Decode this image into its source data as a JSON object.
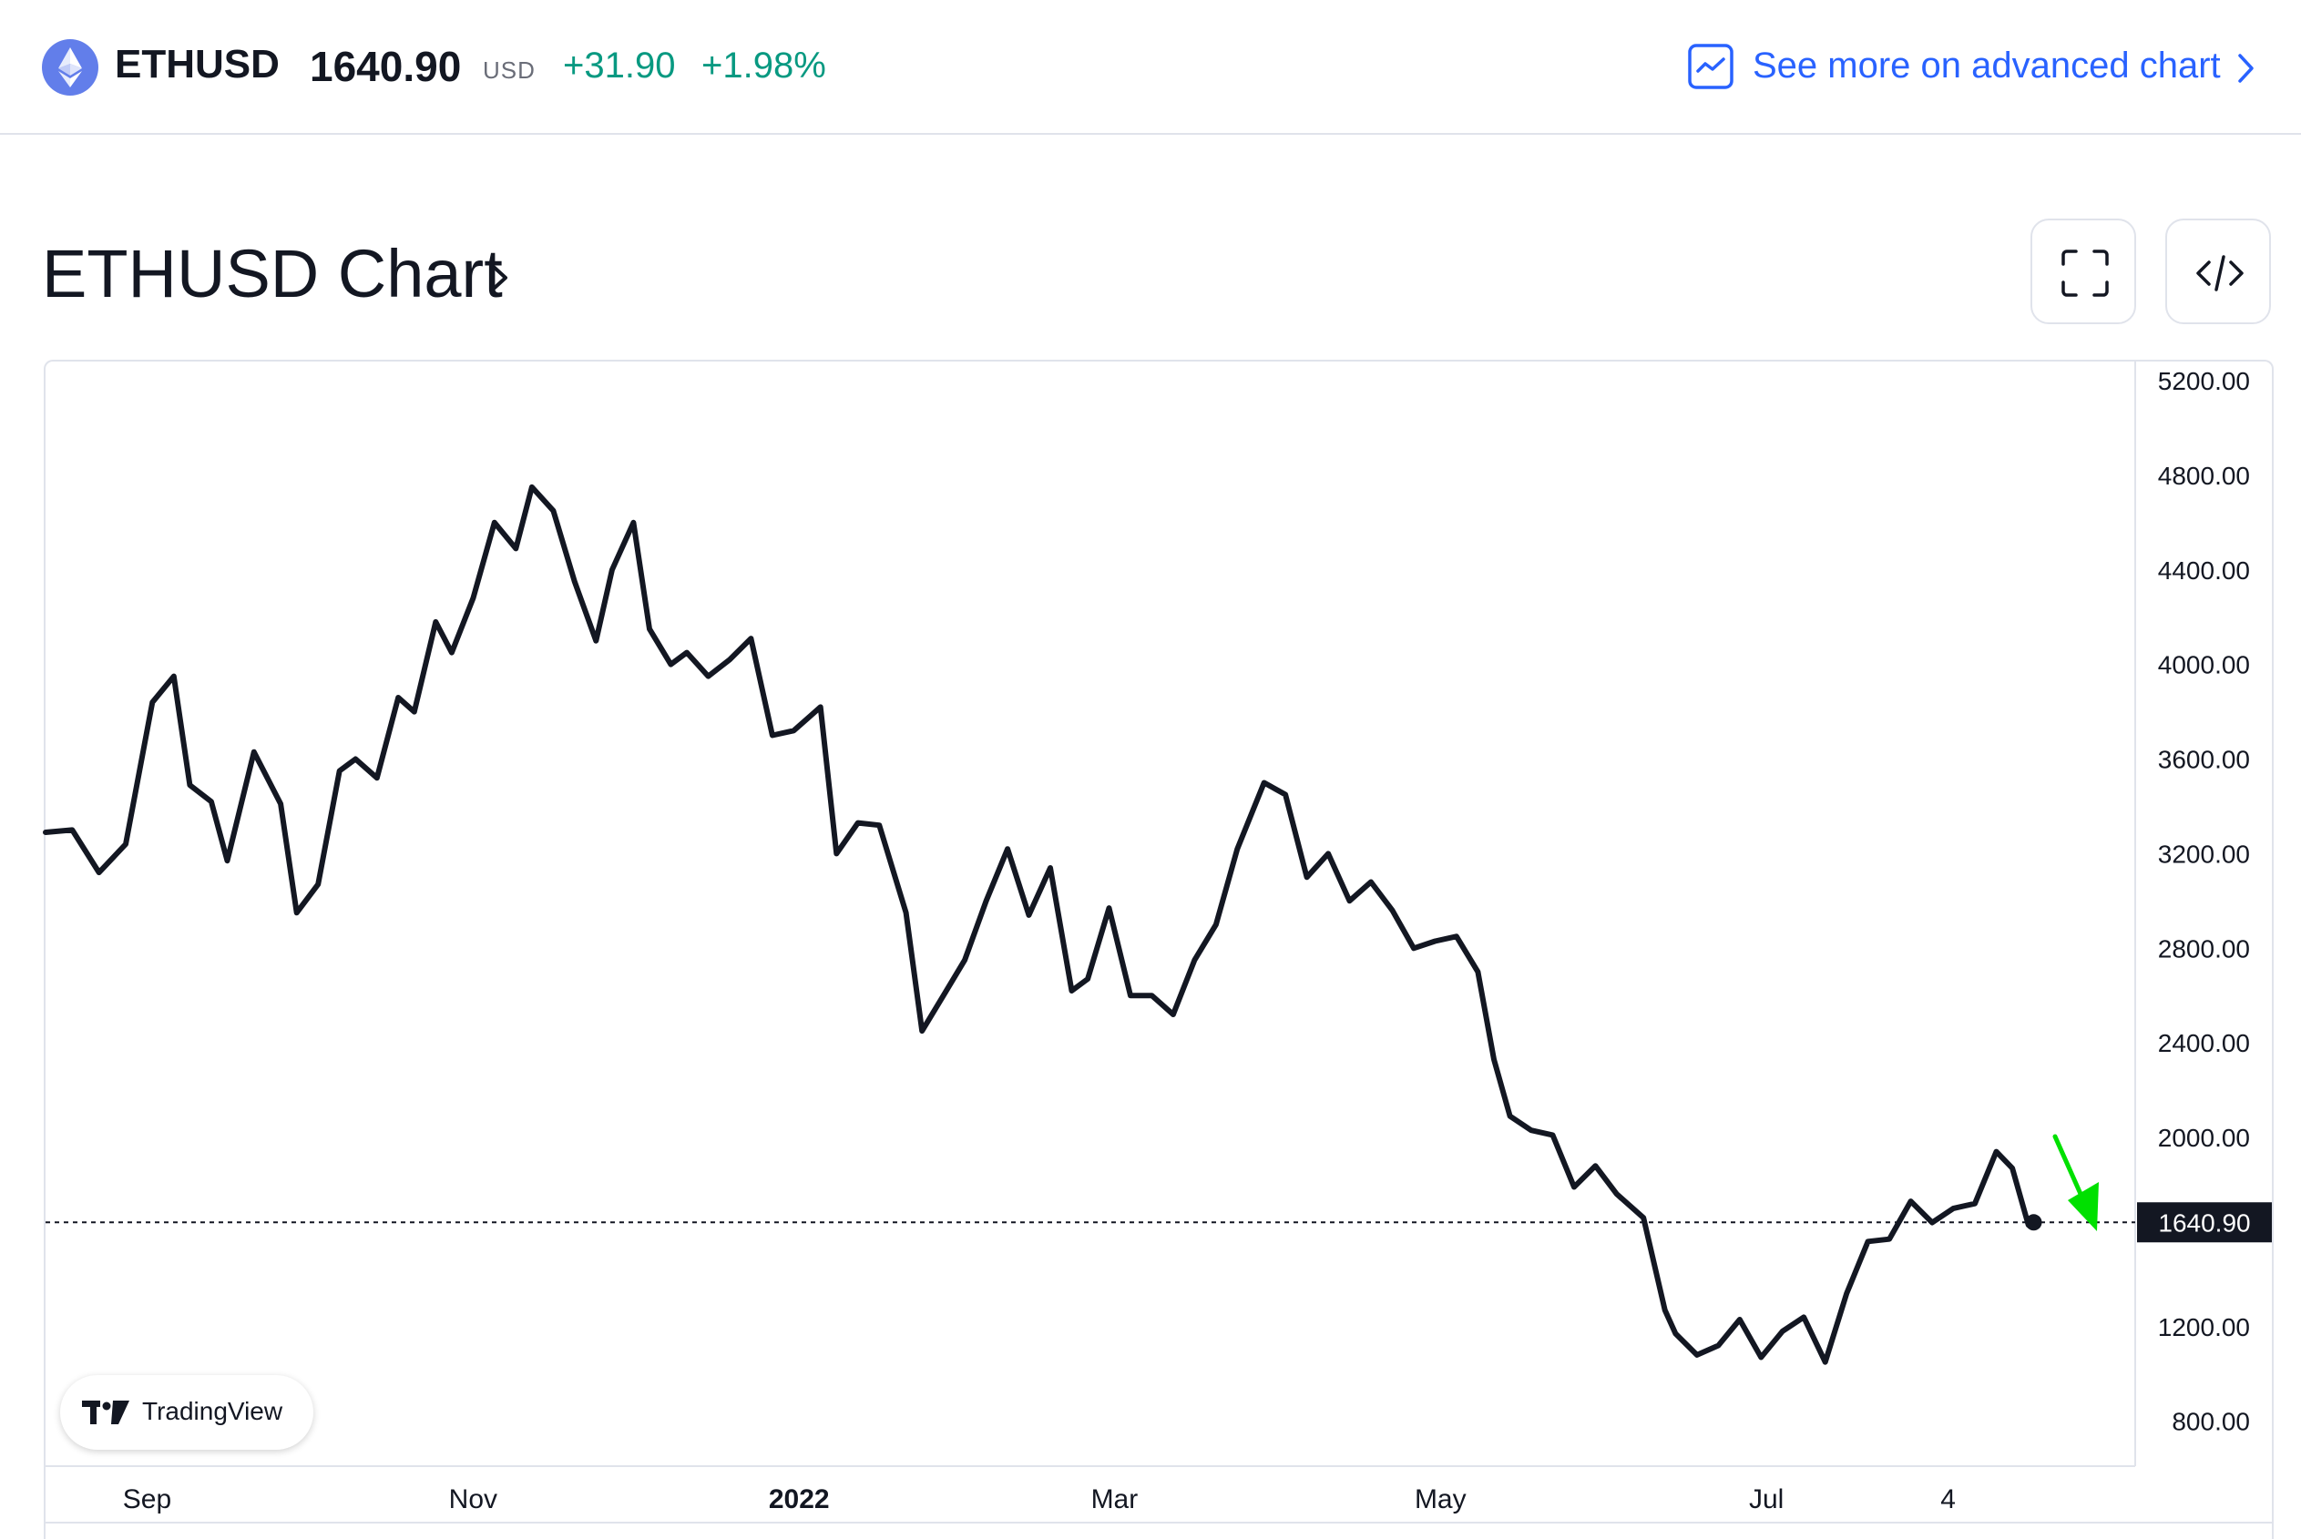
{
  "header": {
    "symbol": "ETHUSD",
    "price": "1640.90",
    "currency": "USD",
    "change": "+31.90",
    "change_percent": "+1.98%",
    "advanced_chart_label": "See more on advanced chart",
    "accent_color": "#2962ff",
    "positive_color": "#089981"
  },
  "chart_section": {
    "title": "ETHUSD Chart",
    "fullscreen_icon": "fullscreen-icon",
    "embed_icon": "code-embed-icon"
  },
  "watermark": {
    "label": "TradingView"
  },
  "chart_data": {
    "type": "line",
    "title": "",
    "xlabel": "",
    "ylabel": "",
    "ylim": [
      680,
      5280
    ],
    "x_tick_labels": [
      "Sep",
      "Nov",
      "2022",
      "Mar",
      "May",
      "Jul",
      "4"
    ],
    "y_tick_labels": [
      "5200.00",
      "4800.00",
      "4400.00",
      "4000.00",
      "3600.00",
      "3200.00",
      "2800.00",
      "2400.00",
      "2000.00",
      "1200.00",
      "800.00"
    ],
    "y_ticks": [
      5200,
      4800,
      4400,
      4000,
      3600,
      3200,
      2800,
      2400,
      2000,
      1200,
      800
    ],
    "last_price": 1640.9,
    "last_price_label": "1640.90",
    "line_color": "#131722",
    "arrow_annotation_color": "#00e000",
    "series": [
      {
        "x": [
          "2021-08-13",
          "2021-08-18",
          "2021-08-23",
          "2021-08-28",
          "2021-09-02",
          "2021-09-06",
          "2021-09-09",
          "2021-09-13",
          "2021-09-16",
          "2021-09-21",
          "2021-09-26",
          "2021-09-29",
          "2021-10-03",
          "2021-10-07",
          "2021-10-10",
          "2021-10-14",
          "2021-10-18",
          "2021-10-21",
          "2021-10-25",
          "2021-10-28",
          "2021-11-01",
          "2021-11-05",
          "2021-11-09",
          "2021-11-12",
          "2021-11-16",
          "2021-11-20",
          "2021-11-24",
          "2021-11-27",
          "2021-12-01",
          "2021-12-04",
          "2021-12-08",
          "2021-12-11",
          "2021-12-15",
          "2021-12-19",
          "2021-12-23",
          "2021-12-27",
          "2021-12-31",
          "2022-01-05",
          "2022-01-08",
          "2022-01-12",
          "2022-01-16",
          "2022-01-21",
          "2022-01-24",
          "2022-01-28",
          "2022-02-01",
          "2022-02-05",
          "2022-02-09",
          "2022-02-13",
          "2022-02-17",
          "2022-02-21",
          "2022-02-24",
          "2022-02-28",
          "2022-03-04",
          "2022-03-08",
          "2022-03-12",
          "2022-03-16",
          "2022-03-20",
          "2022-03-24",
          "2022-03-29",
          "2022-04-02",
          "2022-04-06",
          "2022-04-10",
          "2022-04-14",
          "2022-04-18",
          "2022-04-22",
          "2022-04-26",
          "2022-04-30",
          "2022-05-04",
          "2022-05-08",
          "2022-05-11",
          "2022-05-14",
          "2022-05-18",
          "2022-05-22",
          "2022-05-26",
          "2022-05-30",
          "2022-06-03",
          "2022-06-08",
          "2022-06-12",
          "2022-06-14",
          "2022-06-18",
          "2022-06-22",
          "2022-06-26",
          "2022-06-30",
          "2022-07-04",
          "2022-07-08",
          "2022-07-12",
          "2022-07-16",
          "2022-07-20",
          "2022-07-24",
          "2022-07-28",
          "2022-08-01",
          "2022-08-05",
          "2022-08-09",
          "2022-08-13",
          "2022-08-16",
          "2022-08-19",
          "2022-08-20"
        ],
        "y": [
          3290,
          3300,
          3120,
          3240,
          3840,
          3950,
          3490,
          3420,
          3170,
          3630,
          3410,
          2950,
          3070,
          3550,
          3600,
          3520,
          3860,
          3800,
          4180,
          4050,
          4280,
          4600,
          4490,
          4750,
          4650,
          4350,
          4100,
          4400,
          4600,
          4150,
          4000,
          4050,
          3950,
          4020,
          4110,
          3700,
          3720,
          3820,
          3200,
          3330,
          3320,
          2950,
          2450,
          2600,
          2750,
          3000,
          3220,
          2940,
          3140,
          2620,
          2670,
          2970,
          2600,
          2600,
          2520,
          2750,
          2900,
          3220,
          3500,
          3450,
          3100,
          3200,
          3000,
          3080,
          2960,
          2800,
          2830,
          2850,
          2700,
          2330,
          2090,
          2030,
          2010,
          1790,
          1880,
          1760,
          1660,
          1270,
          1170,
          1080,
          1120,
          1230,
          1070,
          1180,
          1240,
          1050,
          1340,
          1560,
          1570,
          1730,
          1640,
          1700,
          1720,
          1940,
          1870,
          1630,
          1640.9
        ]
      }
    ]
  }
}
